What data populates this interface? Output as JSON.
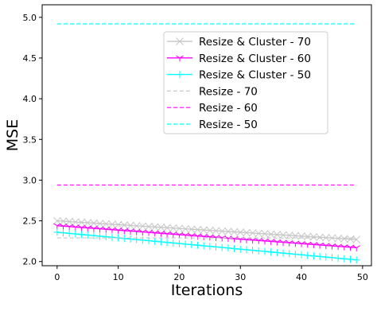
{
  "chart_data": {
    "type": "line",
    "xlabel": "Iterations",
    "ylabel": "MSE",
    "xlim": [
      -2.45,
      51.45
    ],
    "ylim": [
      1.9486,
      5.1542
    ],
    "xticks": [
      0,
      10,
      20,
      30,
      40,
      50
    ],
    "yticks": [
      2.0,
      2.5,
      3.0,
      3.5,
      4.0,
      4.5,
      5.0
    ],
    "xtick_labels": [
      "0",
      "10",
      "20",
      "30",
      "40",
      "50"
    ],
    "ytick_labels": [
      "2.0",
      "2.5",
      "3.0",
      "3.5",
      "4.0",
      "4.5",
      "5.0"
    ],
    "grid": false,
    "legend_position": "top-right",
    "series": [
      {
        "name": "Resize & Cluster - 70",
        "color": "#c8c8c8",
        "style": "solid",
        "marker": "x",
        "start": 2.5,
        "end": 2.27
      },
      {
        "name": "Resize & Cluster - 60",
        "color": "#ff00ff",
        "style": "solid",
        "marker": "tri_down",
        "start": 2.44,
        "end": 2.17
      },
      {
        "name": "Resize & Cluster - 50",
        "color": "#00ffff",
        "style": "solid",
        "marker": "plus",
        "start": 2.36,
        "end": 2.02
      },
      {
        "name": "Resize - 70",
        "color": "#c8c8c8",
        "style": "dashed",
        "marker": "none",
        "start": 2.29,
        "end": 2.29
      },
      {
        "name": "Resize - 60",
        "color": "#ff00ff",
        "style": "dashed",
        "marker": "none",
        "start": 2.94,
        "end": 2.94
      },
      {
        "name": "Resize - 50",
        "color": "#00ffff",
        "style": "dashed",
        "marker": "none",
        "start": 4.92,
        "end": 4.92
      }
    ]
  }
}
